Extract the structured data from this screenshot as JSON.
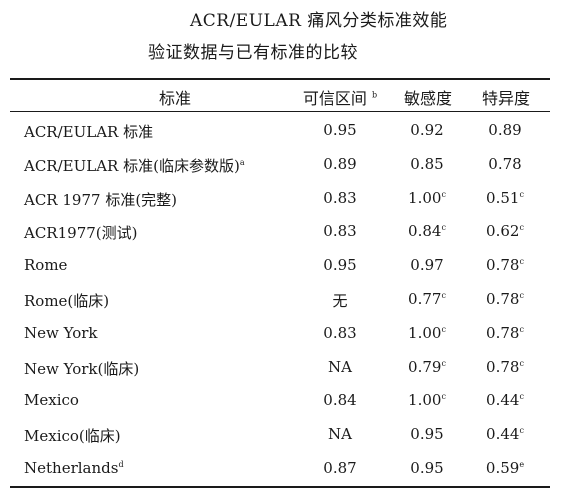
{
  "title": {
    "line1": "ACR/EULAR 痛风分类标准效能",
    "line2": "验证数据与已有标准的比较"
  },
  "table": {
    "headers": [
      {
        "text": "标准",
        "sup": ""
      },
      {
        "text": "可信区间",
        "sup": "b"
      },
      {
        "text": "敏感度",
        "sup": ""
      },
      {
        "text": "特异度",
        "sup": ""
      }
    ],
    "rows": [
      {
        "criterion": "ACR/EULAR 标准",
        "criterion_sup": "",
        "ci": "0.95",
        "ci_sup": "",
        "sensitivity": "0.92",
        "sensitivity_sup": "",
        "specificity": "0.89",
        "specificity_sup": ""
      },
      {
        "criterion": "ACR/EULAR 标准(临床参数版)",
        "criterion_sup": "a",
        "ci": "0.89",
        "ci_sup": "",
        "sensitivity": "0.85",
        "sensitivity_sup": "",
        "specificity": "0.78",
        "specificity_sup": ""
      },
      {
        "criterion": "ACR 1977 标准(完整)",
        "criterion_sup": "",
        "ci": "0.83",
        "ci_sup": "",
        "sensitivity": "1.00",
        "sensitivity_sup": "c",
        "specificity": "0.51",
        "specificity_sup": "c"
      },
      {
        "criterion": "ACR1977(测试)",
        "criterion_sup": "",
        "ci": "0.83",
        "ci_sup": "",
        "sensitivity": "0.84",
        "sensitivity_sup": "c",
        "specificity": "0.62",
        "specificity_sup": "c"
      },
      {
        "criterion": "Rome",
        "criterion_sup": "",
        "ci": "0.95",
        "ci_sup": "",
        "sensitivity": "0.97",
        "sensitivity_sup": "",
        "specificity": "0.78",
        "specificity_sup": "c"
      },
      {
        "criterion": "Rome(临床)",
        "criterion_sup": "",
        "ci": "无",
        "ci_sup": "",
        "sensitivity": "0.77",
        "sensitivity_sup": "c",
        "specificity": "0.78",
        "specificity_sup": "c"
      },
      {
        "criterion": "New York",
        "criterion_sup": "",
        "ci": "0.83",
        "ci_sup": "",
        "sensitivity": "1.00",
        "sensitivity_sup": "c",
        "specificity": "0.78",
        "specificity_sup": "c"
      },
      {
        "criterion": "New York(临床)",
        "criterion_sup": "",
        "ci": "NA",
        "ci_sup": "",
        "sensitivity": "0.79",
        "sensitivity_sup": "c",
        "specificity": "0.78",
        "specificity_sup": "c"
      },
      {
        "criterion": "Mexico",
        "criterion_sup": "",
        "ci": "0.84",
        "ci_sup": "",
        "sensitivity": "1.00",
        "sensitivity_sup": "c",
        "specificity": "0.44",
        "specificity_sup": "c"
      },
      {
        "criterion": "Mexico(临床)",
        "criterion_sup": "",
        "ci": "NA",
        "ci_sup": "",
        "sensitivity": "0.95",
        "sensitivity_sup": "",
        "specificity": "0.44",
        "specificity_sup": "c"
      },
      {
        "criterion": "Netherlands",
        "criterion_sup": "d",
        "ci": "0.87",
        "ci_sup": "",
        "sensitivity": "0.95",
        "sensitivity_sup": "",
        "specificity": "0.59",
        "specificity_sup": "e"
      }
    ]
  }
}
